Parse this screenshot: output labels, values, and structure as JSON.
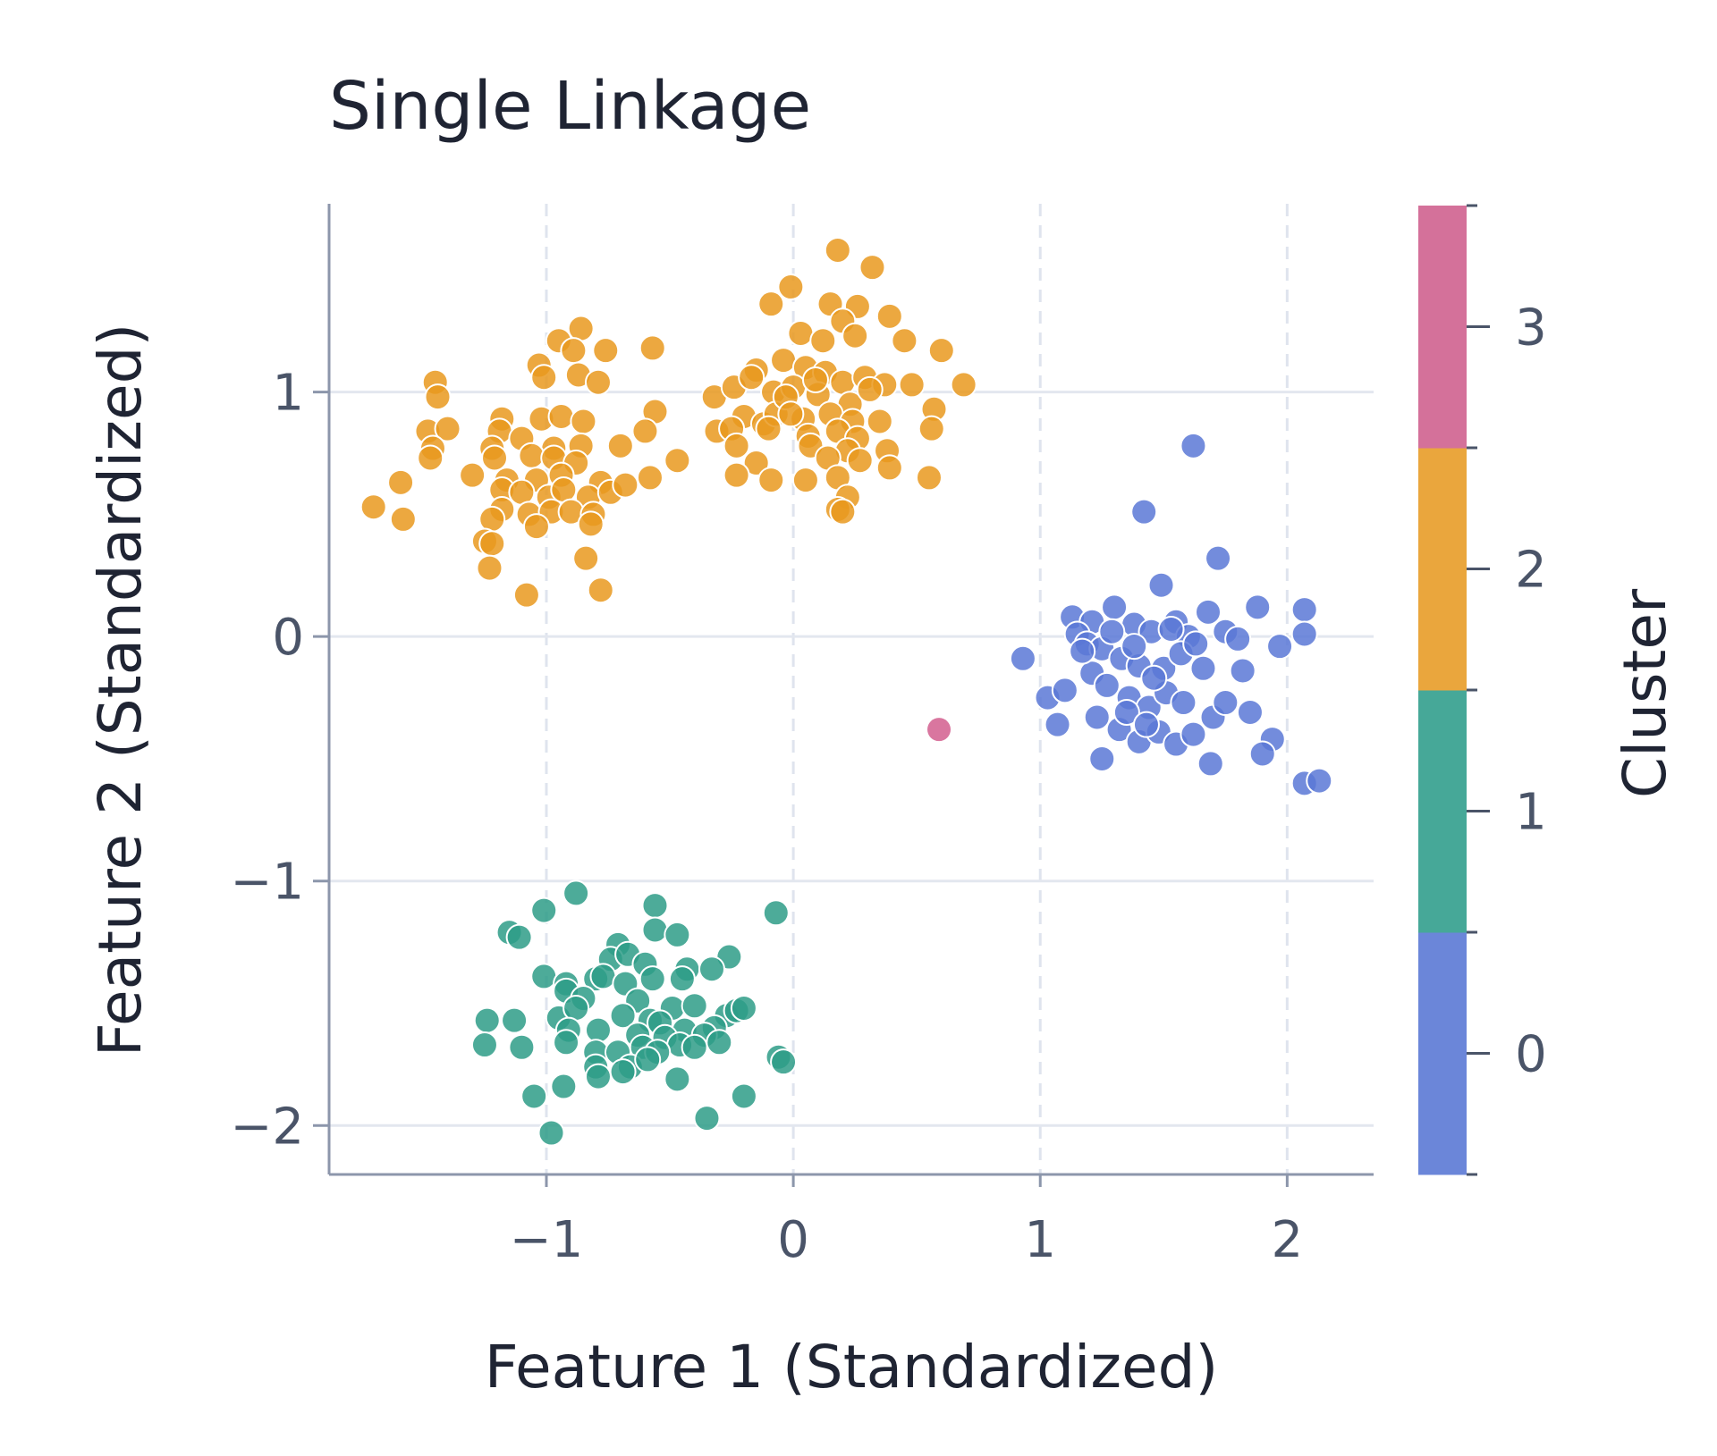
{
  "chart_data": {
    "type": "scatter",
    "title": "Single Linkage",
    "xlabel": "Feature 1 (Standardized)",
    "ylabel": "Feature 2 (Standardized)",
    "xlim": [
      -1.88,
      2.35
    ],
    "ylim": [
      -2.2,
      1.77
    ],
    "xticks": [
      -1,
      0,
      1,
      2
    ],
    "xtick_labels": [
      "−1",
      "0",
      "1",
      "2"
    ],
    "yticks": [
      -2,
      -1,
      0,
      1
    ],
    "ytick_labels": [
      "−2",
      "−1",
      "0",
      "1"
    ],
    "grid": true,
    "colorbar": {
      "label": "Cluster",
      "ticks": [
        0,
        1,
        2,
        3
      ],
      "tick_labels": [
        "0",
        "1",
        "2",
        "3"
      ],
      "colors": [
        "#6b86d9",
        "#46a898",
        "#eaa63d",
        "#d4719a"
      ]
    },
    "series": [
      {
        "cluster": 0,
        "color": "#5b78d6",
        "points": [
          [
            1.62,
            0.78
          ],
          [
            1.42,
            0.51
          ],
          [
            1.72,
            0.32
          ],
          [
            1.49,
            0.21
          ],
          [
            1.88,
            0.12
          ],
          [
            2.07,
            0.11
          ],
          [
            0.93,
            -0.09
          ],
          [
            1.13,
            0.08
          ],
          [
            1.21,
            0.06
          ],
          [
            1.3,
            0.12
          ],
          [
            1.38,
            0.05
          ],
          [
            1.45,
            0.02
          ],
          [
            1.55,
            0.06
          ],
          [
            1.6,
            0.0
          ],
          [
            1.68,
            0.1
          ],
          [
            1.75,
            0.02
          ],
          [
            1.8,
            -0.01
          ],
          [
            1.97,
            -0.04
          ],
          [
            2.07,
            0.01
          ],
          [
            1.15,
            0.01
          ],
          [
            1.19,
            -0.03
          ],
          [
            1.25,
            -0.05
          ],
          [
            1.33,
            -0.09
          ],
          [
            1.4,
            -0.12
          ],
          [
            1.5,
            -0.13
          ],
          [
            1.57,
            -0.07
          ],
          [
            1.63,
            -0.03
          ],
          [
            1.82,
            -0.14
          ],
          [
            1.03,
            -0.25
          ],
          [
            1.1,
            -0.22
          ],
          [
            1.21,
            -0.15
          ],
          [
            1.27,
            -0.2
          ],
          [
            1.36,
            -0.25
          ],
          [
            1.44,
            -0.29
          ],
          [
            1.51,
            -0.23
          ],
          [
            1.58,
            -0.27
          ],
          [
            1.7,
            -0.33
          ],
          [
            1.85,
            -0.31
          ],
          [
            1.07,
            -0.36
          ],
          [
            1.23,
            -0.33
          ],
          [
            1.32,
            -0.38
          ],
          [
            1.4,
            -0.43
          ],
          [
            1.48,
            -0.39
          ],
          [
            1.55,
            -0.44
          ],
          [
            1.62,
            -0.4
          ],
          [
            1.75,
            -0.27
          ],
          [
            1.94,
            -0.42
          ],
          [
            1.9,
            -0.48
          ],
          [
            1.25,
            -0.5
          ],
          [
            1.69,
            -0.52
          ],
          [
            2.07,
            -0.6
          ],
          [
            2.13,
            -0.59
          ],
          [
            1.38,
            -0.04
          ],
          [
            1.46,
            -0.17
          ],
          [
            1.53,
            0.03
          ],
          [
            1.66,
            -0.13
          ],
          [
            1.29,
            0.02
          ],
          [
            1.17,
            -0.06
          ],
          [
            1.35,
            -0.31
          ],
          [
            1.43,
            -0.36
          ]
        ]
      },
      {
        "cluster": 1,
        "color": "#2e9c87",
        "points": [
          [
            -0.88,
            -1.05
          ],
          [
            -1.01,
            -1.12
          ],
          [
            -0.56,
            -1.1
          ],
          [
            -0.07,
            -1.13
          ],
          [
            -1.15,
            -1.21
          ],
          [
            -1.11,
            -1.23
          ],
          [
            -0.56,
            -1.2
          ],
          [
            -0.47,
            -1.22
          ],
          [
            -0.71,
            -1.26
          ],
          [
            -0.74,
            -1.32
          ],
          [
            -0.67,
            -1.3
          ],
          [
            -0.6,
            -1.34
          ],
          [
            -0.26,
            -1.31
          ],
          [
            -0.43,
            -1.36
          ],
          [
            -0.33,
            -1.36
          ],
          [
            -0.45,
            -1.4
          ],
          [
            -0.8,
            -1.4
          ],
          [
            -1.01,
            -1.39
          ],
          [
            -0.92,
            -1.42
          ],
          [
            -0.77,
            -1.39
          ],
          [
            -0.68,
            -1.42
          ],
          [
            -0.57,
            -1.4
          ],
          [
            -0.92,
            -1.45
          ],
          [
            -0.85,
            -1.48
          ],
          [
            -0.63,
            -1.49
          ],
          [
            -0.49,
            -1.52
          ],
          [
            -0.4,
            -1.51
          ],
          [
            -0.27,
            -1.55
          ],
          [
            -0.23,
            -1.53
          ],
          [
            -0.2,
            -1.52
          ],
          [
            -1.24,
            -1.57
          ],
          [
            -1.13,
            -1.57
          ],
          [
            -0.95,
            -1.56
          ],
          [
            -0.88,
            -1.52
          ],
          [
            -0.69,
            -1.55
          ],
          [
            -0.58,
            -1.57
          ],
          [
            -0.54,
            -1.58
          ],
          [
            -0.44,
            -1.61
          ],
          [
            -0.32,
            -1.6
          ],
          [
            -0.91,
            -1.61
          ],
          [
            -0.79,
            -1.61
          ],
          [
            -0.63,
            -1.63
          ],
          [
            -0.52,
            -1.64
          ],
          [
            -0.46,
            -1.67
          ],
          [
            -0.36,
            -1.63
          ],
          [
            -1.25,
            -1.67
          ],
          [
            -1.1,
            -1.68
          ],
          [
            -0.92,
            -1.66
          ],
          [
            -0.8,
            -1.7
          ],
          [
            -0.71,
            -1.7
          ],
          [
            -0.61,
            -1.68
          ],
          [
            -0.55,
            -1.7
          ],
          [
            -0.4,
            -1.68
          ],
          [
            -0.3,
            -1.66
          ],
          [
            -0.06,
            -1.72
          ],
          [
            -0.04,
            -1.74
          ],
          [
            -0.8,
            -1.76
          ],
          [
            -0.66,
            -1.76
          ],
          [
            -0.59,
            -1.73
          ],
          [
            -0.69,
            -1.78
          ],
          [
            -0.47,
            -1.81
          ],
          [
            -0.93,
            -1.84
          ],
          [
            -0.79,
            -1.8
          ],
          [
            -1.05,
            -1.88
          ],
          [
            -0.2,
            -1.88
          ],
          [
            -0.35,
            -1.97
          ],
          [
            -0.98,
            -2.03
          ]
        ]
      },
      {
        "cluster": 2,
        "color": "#e9991f",
        "points": [
          [
            0.18,
            1.58
          ],
          [
            0.32,
            1.51
          ],
          [
            -0.01,
            1.43
          ],
          [
            -0.09,
            1.36
          ],
          [
            0.15,
            1.36
          ],
          [
            0.26,
            1.35
          ],
          [
            0.39,
            1.31
          ],
          [
            0.2,
            1.29
          ],
          [
            -0.86,
            1.26
          ],
          [
            -0.95,
            1.21
          ],
          [
            -0.89,
            1.17
          ],
          [
            -0.76,
            1.17
          ],
          [
            -0.57,
            1.18
          ],
          [
            0.03,
            1.24
          ],
          [
            0.12,
            1.21
          ],
          [
            0.25,
            1.23
          ],
          [
            0.45,
            1.21
          ],
          [
            0.6,
            1.17
          ],
          [
            -1.03,
            1.11
          ],
          [
            -1.01,
            1.06
          ],
          [
            -0.87,
            1.07
          ],
          [
            -0.79,
            1.04
          ],
          [
            -0.15,
            1.09
          ],
          [
            -0.04,
            1.13
          ],
          [
            0.05,
            1.1
          ],
          [
            0.13,
            1.08
          ],
          [
            0.2,
            1.04
          ],
          [
            0.29,
            1.06
          ],
          [
            0.37,
            1.03
          ],
          [
            0.48,
            1.03
          ],
          [
            0.69,
            1.03
          ],
          [
            -1.45,
            1.04
          ],
          [
            -1.44,
            0.98
          ],
          [
            -0.32,
            0.98
          ],
          [
            -0.24,
            1.02
          ],
          [
            -0.17,
            1.06
          ],
          [
            -0.08,
            1.0
          ],
          [
            0.0,
            1.02
          ],
          [
            0.1,
            0.99
          ],
          [
            0.23,
            0.95
          ],
          [
            0.31,
            1.01
          ],
          [
            0.57,
            0.93
          ],
          [
            -1.18,
            0.89
          ],
          [
            -1.02,
            0.89
          ],
          [
            -0.94,
            0.9
          ],
          [
            -0.85,
            0.88
          ],
          [
            -0.56,
            0.92
          ],
          [
            -0.2,
            0.9
          ],
          [
            -0.12,
            0.87
          ],
          [
            -0.07,
            0.91
          ],
          [
            0.04,
            0.89
          ],
          [
            0.15,
            0.91
          ],
          [
            0.24,
            0.88
          ],
          [
            0.35,
            0.88
          ],
          [
            -1.48,
            0.84
          ],
          [
            -1.4,
            0.85
          ],
          [
            -1.19,
            0.84
          ],
          [
            -1.1,
            0.81
          ],
          [
            -0.6,
            0.84
          ],
          [
            -0.31,
            0.84
          ],
          [
            -0.25,
            0.85
          ],
          [
            -0.1,
            0.85
          ],
          [
            0.06,
            0.82
          ],
          [
            0.18,
            0.84
          ],
          [
            0.26,
            0.81
          ],
          [
            0.56,
            0.85
          ],
          [
            -1.46,
            0.77
          ],
          [
            -1.22,
            0.77
          ],
          [
            -0.97,
            0.77
          ],
          [
            -0.86,
            0.78
          ],
          [
            -0.7,
            0.78
          ],
          [
            -0.23,
            0.78
          ],
          [
            0.07,
            0.78
          ],
          [
            0.22,
            0.76
          ],
          [
            0.38,
            0.76
          ],
          [
            -1.47,
            0.73
          ],
          [
            -1.21,
            0.73
          ],
          [
            -1.06,
            0.74
          ],
          [
            -0.97,
            0.73
          ],
          [
            -0.88,
            0.71
          ],
          [
            -0.47,
            0.72
          ],
          [
            -0.15,
            0.71
          ],
          [
            0.14,
            0.73
          ],
          [
            0.27,
            0.72
          ],
          [
            -1.3,
            0.66
          ],
          [
            -1.16,
            0.64
          ],
          [
            -1.04,
            0.64
          ],
          [
            -0.94,
            0.66
          ],
          [
            -0.78,
            0.63
          ],
          [
            -0.58,
            0.65
          ],
          [
            -0.23,
            0.66
          ],
          [
            -0.09,
            0.64
          ],
          [
            0.05,
            0.64
          ],
          [
            0.18,
            0.65
          ],
          [
            0.39,
            0.69
          ],
          [
            0.55,
            0.65
          ],
          [
            -1.59,
            0.63
          ],
          [
            -1.18,
            0.6
          ],
          [
            -1.1,
            0.59
          ],
          [
            -0.99,
            0.57
          ],
          [
            -0.93,
            0.6
          ],
          [
            -0.83,
            0.57
          ],
          [
            -0.74,
            0.59
          ],
          [
            -0.68,
            0.62
          ],
          [
            0.22,
            0.57
          ],
          [
            -1.7,
            0.53
          ],
          [
            -1.18,
            0.52
          ],
          [
            -1.07,
            0.5
          ],
          [
            -0.98,
            0.51
          ],
          [
            -0.9,
            0.51
          ],
          [
            -0.81,
            0.5
          ],
          [
            0.18,
            0.52
          ],
          [
            -1.58,
            0.48
          ],
          [
            -1.22,
            0.48
          ],
          [
            -1.04,
            0.45
          ],
          [
            -0.82,
            0.46
          ],
          [
            -1.25,
            0.39
          ],
          [
            -1.22,
            0.38
          ],
          [
            -0.84,
            0.32
          ],
          [
            -1.23,
            0.28
          ],
          [
            -1.08,
            0.17
          ],
          [
            -0.78,
            0.19
          ],
          [
            0.2,
            0.51
          ],
          [
            -0.03,
            0.98
          ],
          [
            0.09,
            1.05
          ],
          [
            -0.01,
            0.91
          ]
        ]
      },
      {
        "cluster": 3,
        "color": "#d25e8e",
        "points": [
          [
            0.59,
            -0.38
          ]
        ]
      }
    ]
  }
}
